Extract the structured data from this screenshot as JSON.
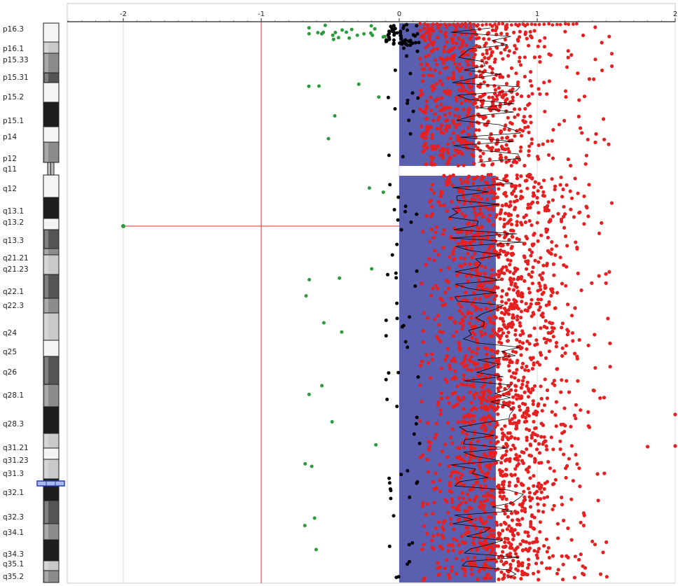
{
  "chart_data": {
    "type": "scatter",
    "title": "",
    "xlabel": "",
    "ylabel": "",
    "x_ticks": [
      "-2",
      "-1",
      "0",
      "1",
      "2"
    ],
    "xlim": [
      -2.98,
      2.0
    ],
    "grid": "vertical",
    "ideogram": {
      "bands": [
        {
          "name": "p16.3",
          "stain": "white"
        },
        {
          "name": "p16.1",
          "stain": "light"
        },
        {
          "name": "p15.33",
          "stain": "gray"
        },
        {
          "name": "p15.31",
          "stain": "dark"
        },
        {
          "name": "p15.2",
          "stain": "white"
        },
        {
          "name": "p15.1",
          "stain": "black"
        },
        {
          "name": "p14",
          "stain": "white"
        },
        {
          "name": "p12",
          "stain": "gray"
        },
        {
          "name": "q11",
          "stain": "centromere"
        },
        {
          "name": "q12",
          "stain": "white"
        },
        {
          "name": "q13.1",
          "stain": "black"
        },
        {
          "name": "q13.2",
          "stain": "white"
        },
        {
          "name": "q13.3",
          "stain": "dark"
        },
        {
          "name": "q21.21",
          "stain": "gray"
        },
        {
          "name": "q21.23",
          "stain": "light"
        },
        {
          "name": "q22.1",
          "stain": "dark"
        },
        {
          "name": "q22.3",
          "stain": "gray"
        },
        {
          "name": "q24",
          "stain": "light"
        },
        {
          "name": "q25",
          "stain": "white"
        },
        {
          "name": "q26",
          "stain": "dark"
        },
        {
          "name": "q28.1",
          "stain": "gray"
        },
        {
          "name": "q28.3",
          "stain": "black"
        },
        {
          "name": "q31.21",
          "stain": "light"
        },
        {
          "name": "q31.23",
          "stain": "white"
        },
        {
          "name": "q31.3",
          "stain": "light"
        },
        {
          "name": "q32.1",
          "stain": "black"
        },
        {
          "name": "q32.3",
          "stain": "dark"
        },
        {
          "name": "q34.1",
          "stain": "gray"
        },
        {
          "name": "q34.3",
          "stain": "black"
        },
        {
          "name": "q35.1",
          "stain": "light"
        },
        {
          "name": "q35.2",
          "stain": "gray"
        }
      ]
    },
    "segments": [
      {
        "arm": "p",
        "value": 0.55
      },
      {
        "arm": "q",
        "value": 0.7
      }
    ],
    "highlight": {
      "band": "q13.2",
      "value": -2.0
    },
    "series": [
      {
        "status": "gain",
        "color": "#e62020",
        "x_range": [
          0.15,
          1.55
        ],
        "count": 2600
      },
      {
        "status": "neutral",
        "color": "#000000",
        "x_range": [
          -0.1,
          0.15
        ],
        "count": 120
      },
      {
        "status": "loss",
        "color": "#2a9d3a",
        "x_range": [
          -0.7,
          -0.1
        ],
        "count": 45
      }
    ],
    "trend": {
      "color": "#000000",
      "x_range": [
        0.35,
        0.9
      ]
    }
  }
}
